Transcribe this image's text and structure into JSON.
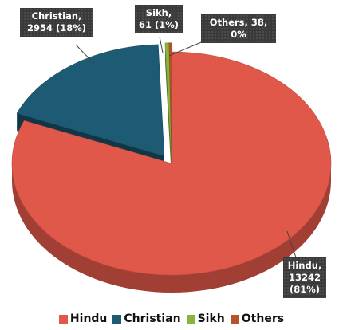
{
  "chart_data": {
    "type": "pie",
    "title": "",
    "categories": [
      "Hindu",
      "Christian",
      "Sikh",
      "Others"
    ],
    "values": [
      13242,
      2954,
      61,
      38
    ],
    "percents": [
      "81%",
      "18%",
      "1%",
      "0%"
    ],
    "colors": [
      "#e0584a",
      "#1d5a73",
      "#8ab53c",
      "#b5532a"
    ],
    "data_labels": [
      [
        "Hindu,",
        "13242",
        "(81%)"
      ],
      [
        "Christian,",
        "2954 (18%)"
      ],
      [
        "Sikh,",
        "61 (1%)"
      ],
      [
        "Others, 38,",
        "0%"
      ]
    ],
    "legend": {
      "position": "bottom",
      "items": [
        "Hindu",
        "Christian",
        "Sikh",
        "Others"
      ]
    },
    "style": "3d-exploded"
  }
}
